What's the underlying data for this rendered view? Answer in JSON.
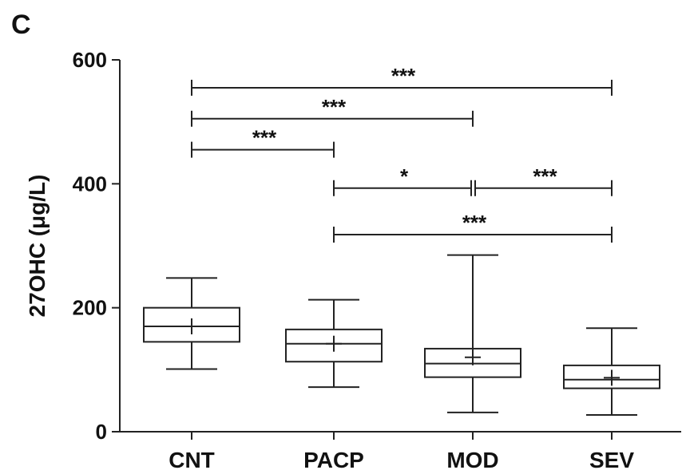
{
  "panel_label": "C",
  "chart_data": {
    "type": "box",
    "ylabel": "27OHC (μg/L)",
    "ylim": [
      0,
      600
    ],
    "yticks": [
      0,
      200,
      400,
      600
    ],
    "categories": [
      "CNT",
      "PACP",
      "MOD",
      "SEV"
    ],
    "boxes": [
      {
        "category": "CNT",
        "min": 101,
        "q1": 145,
        "median": 170,
        "q3": 200,
        "max": 248,
        "mean": 170
      },
      {
        "category": "PACP",
        "min": 72,
        "q1": 113,
        "median": 142,
        "q3": 165,
        "max": 213,
        "mean": 142
      },
      {
        "category": "MOD",
        "min": 31,
        "q1": 88,
        "median": 110,
        "q3": 134,
        "max": 285,
        "mean": 120
      },
      {
        "category": "SEV",
        "min": 27,
        "q1": 70,
        "median": 84,
        "q3": 107,
        "max": 167,
        "mean": 87
      }
    ],
    "significance": [
      {
        "from": "CNT",
        "to": "SEV",
        "y": 555,
        "label": "***"
      },
      {
        "from": "CNT",
        "to": "MOD",
        "y": 505,
        "label": "***"
      },
      {
        "from": "CNT",
        "to": "PACP",
        "y": 455,
        "label": "***"
      },
      {
        "from": "PACP",
        "to": "MOD",
        "y": 393,
        "label": "*"
      },
      {
        "from": "MOD",
        "to": "SEV",
        "y": 393,
        "label": "***"
      },
      {
        "from": "PACP",
        "to": "SEV",
        "y": 318,
        "label": "***"
      }
    ]
  }
}
